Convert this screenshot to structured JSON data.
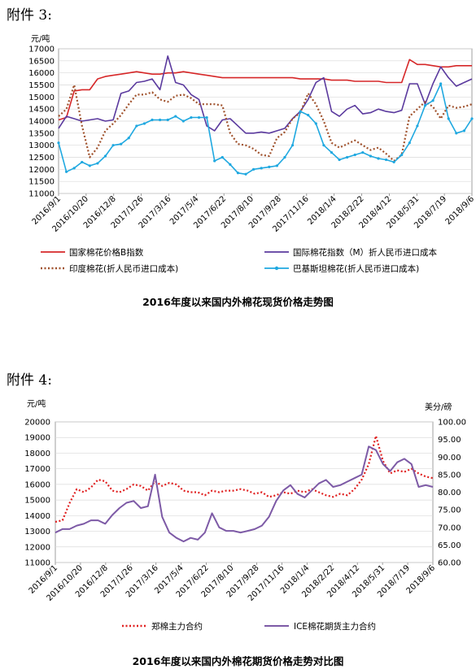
{
  "attachment3": {
    "label": "附件 3:"
  },
  "attachment4": {
    "label": "附件 4:"
  },
  "chart_data": [
    {
      "type": "line",
      "title": "2016年度以来国内外棉花现货价格走势图",
      "ylabel": "元/吨",
      "ylim": [
        11000,
        17000
      ],
      "yticks": [
        11000,
        11500,
        12000,
        12500,
        13000,
        13500,
        14000,
        14500,
        15000,
        15500,
        16000,
        16500,
        17000
      ],
      "grid": true,
      "legend_position": "bottom",
      "x_tick_labels": [
        "2016/9/1",
        "2016/10/20",
        "2016/12/8",
        "2017/1/26",
        "2017/3/16",
        "2017/5/4",
        "2017/6/22",
        "2017/8/10",
        "2017/9/28",
        "2017/11/16",
        "2018/1/4",
        "2018/2/22",
        "2018/4/12",
        "2018/5/31",
        "2018/7/19",
        "2018/9/6"
      ],
      "series": [
        {
          "name": "国家棉花价格B指数",
          "color": "#d62728",
          "style": "solid",
          "values": [
            14050,
            14150,
            15250,
            15300,
            15300,
            15750,
            15850,
            15900,
            15950,
            16000,
            16050,
            16000,
            15950,
            15950,
            16000,
            16000,
            16050,
            16000,
            15950,
            15900,
            15850,
            15800,
            15800,
            15800,
            15800,
            15800,
            15800,
            15800,
            15800,
            15800,
            15800,
            15750,
            15750,
            15750,
            15750,
            15700,
            15700,
            15700,
            15650,
            15650,
            15650,
            15650,
            15600,
            15600,
            15600,
            16550,
            16350,
            16350,
            16300,
            16250,
            16250,
            16300,
            16300,
            16300
          ]
        },
        {
          "name": "国际棉花指数（M）折人民币进口成本",
          "color": "#5b3a9e",
          "style": "solid",
          "values": [
            13700,
            14200,
            14100,
            14000,
            14050,
            14100,
            14000,
            14050,
            15150,
            15250,
            15600,
            15650,
            15750,
            15300,
            16700,
            15600,
            15500,
            15100,
            14900,
            13800,
            13600,
            14050,
            14100,
            13800,
            13500,
            13500,
            13550,
            13500,
            13600,
            13700,
            14100,
            14400,
            14900,
            15600,
            15800,
            14400,
            14200,
            14500,
            14650,
            14300,
            14350,
            14500,
            14400,
            14350,
            14450,
            15550,
            15550,
            14700,
            15550,
            16250,
            15800,
            15450,
            15600,
            15750
          ]
        },
        {
          "name": "印度棉花(折人民币进口成本)",
          "color": "#a0522d",
          "style": "dotted",
          "values": [
            14200,
            14500,
            15500,
            13800,
            12500,
            12900,
            13600,
            13900,
            14250,
            14700,
            15100,
            15100,
            15200,
            14900,
            14800,
            15050,
            15100,
            14950,
            14700,
            14700,
            14700,
            14650,
            13500,
            13050,
            13000,
            12850,
            12600,
            12550,
            13300,
            13550,
            14100,
            14350,
            15150,
            14700,
            14000,
            13100,
            12900,
            13050,
            13200,
            13000,
            12800,
            12900,
            12650,
            12350,
            12600,
            14200,
            14500,
            14800,
            14600,
            14100,
            14650,
            14550,
            14600,
            14700
          ]
        },
        {
          "name": "巴基斯坦棉花(折人民币进口成本)",
          "color": "#1fa8e0",
          "style": "solid-marker",
          "values": [
            13100,
            11900,
            12050,
            12300,
            12150,
            12250,
            12550,
            13000,
            13050,
            13300,
            13800,
            13900,
            14050,
            14050,
            14050,
            14200,
            14000,
            14150,
            14150,
            14150,
            12350,
            12500,
            12200,
            11850,
            11800,
            12000,
            12050,
            12100,
            12150,
            12500,
            13000,
            14400,
            14250,
            13900,
            13000,
            12700,
            12400,
            12500,
            12600,
            12700,
            12550,
            12450,
            12400,
            12300,
            12600,
            13100,
            13800,
            14650,
            14850,
            15550,
            14100,
            13500,
            13600,
            14100
          ]
        }
      ]
    },
    {
      "type": "line",
      "title": "2016年度以来国内外棉花期货价格走势对比图",
      "ylabel": "元/吨",
      "ylabel_right": "美分/磅",
      "ylim": [
        11000,
        20000
      ],
      "ylim_right": [
        60.0,
        100.0
      ],
      "yticks": [
        11000,
        12000,
        13000,
        14000,
        15000,
        16000,
        17000,
        18000,
        19000,
        20000
      ],
      "yticks_right": [
        "60.00",
        "65.00",
        "70.00",
        "75.00",
        "80.00",
        "85.00",
        "90.00",
        "95.00",
        "100.00"
      ],
      "grid": true,
      "legend_position": "bottom",
      "x_tick_labels": [
        "2016/9/1",
        "2016/10/20",
        "2016/12/8",
        "2017/1/26",
        "2017/3/16",
        "2017/5/4",
        "2017/6/22",
        "2017/8/10",
        "2017/9/28",
        "2017/11/16",
        "2018/1/4",
        "2018/2/22",
        "2018/4/12",
        "2018/5/31",
        "2018/7/19",
        "2018/9/6"
      ],
      "series": [
        {
          "name": "郑棉主力合约",
          "axis": "left",
          "color": "#e02020",
          "style": "dotted",
          "values": [
            13600,
            13700,
            14800,
            15700,
            15500,
            15800,
            16300,
            16200,
            15600,
            15500,
            15700,
            16000,
            15900,
            15600,
            16200,
            15900,
            16100,
            16000,
            15600,
            15500,
            15500,
            15300,
            15600,
            15500,
            15600,
            15600,
            15700,
            15600,
            15400,
            15500,
            15200,
            15300,
            15500,
            15400,
            15600,
            15500,
            15700,
            15500,
            15300,
            15200,
            15400,
            15300,
            15700,
            16300,
            17300,
            19100,
            17500,
            16700,
            16900,
            16800,
            17000,
            16700,
            16500,
            16400
          ]
        },
        {
          "name": "ICE棉花期货主力合约",
          "axis": "right",
          "color": "#7d5aa6",
          "style": "solid",
          "values": [
            68.5,
            69.5,
            69.5,
            70.5,
            71.0,
            72.0,
            72.0,
            71.0,
            73.5,
            75.5,
            77.0,
            77.5,
            75.5,
            76.0,
            85.0,
            73.0,
            68.5,
            67.0,
            66.0,
            67.0,
            66.5,
            68.5,
            74.0,
            70.0,
            69.0,
            69.0,
            68.5,
            69.0,
            69.5,
            70.5,
            73.0,
            77.5,
            80.5,
            82.0,
            79.5,
            78.5,
            80.5,
            82.5,
            83.5,
            81.5,
            82.0,
            83.0,
            84.0,
            85.0,
            93.0,
            92.0,
            88.0,
            86.0,
            88.5,
            89.5,
            88.0,
            81.5,
            82.0,
            81.5
          ]
        }
      ]
    }
  ]
}
